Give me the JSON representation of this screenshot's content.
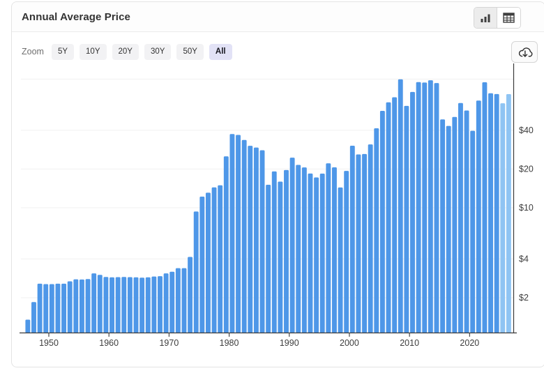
{
  "header": {
    "title": "Annual Average Price",
    "view_toggle": {
      "chart_view_icon": "bar-chart-icon",
      "table_view_icon": "table-icon",
      "active": "chart"
    }
  },
  "toolbar": {
    "zoom_label": "Zoom",
    "ranges": [
      "5Y",
      "10Y",
      "20Y",
      "30Y",
      "50Y",
      "All"
    ],
    "active_range": "All",
    "download_icon": "cloud-download-icon"
  },
  "colors": {
    "bar": "#4e97e8",
    "bar_forecast": "#8fc4f3",
    "axis_line": "#3a3a3a",
    "gridline": "#f1f1f1",
    "tick_label": "#3d3d3d",
    "active_range_bg": "#e2e2f6",
    "range_bg": "#f2f2f4",
    "card_border": "#e4e4e4"
  },
  "chart_data": {
    "type": "bar",
    "title": "Annual Average Price",
    "y_scale": "log",
    "ylim": [
      1.07,
      126
    ],
    "currency_prefix": "$",
    "y_tick_labels": [
      "$40",
      "$20",
      "$10",
      "$4",
      "$2"
    ],
    "y_tick_values": [
      40,
      20,
      10,
      4,
      2
    ],
    "y_gridline_values": [
      2,
      4,
      10,
      20,
      40,
      100
    ],
    "x_tick_years": [
      1950,
      1960,
      1970,
      1980,
      1990,
      2000,
      2010,
      2020
    ],
    "legend": "none",
    "grid": "horizontal",
    "axis_position": "right",
    "forecast_years": [
      2025,
      2026
    ],
    "years": [
      1946,
      1947,
      1948,
      1949,
      1950,
      1951,
      1952,
      1953,
      1954,
      1955,
      1956,
      1957,
      1958,
      1959,
      1960,
      1961,
      1962,
      1963,
      1964,
      1965,
      1966,
      1967,
      1968,
      1969,
      1970,
      1971,
      1972,
      1973,
      1974,
      1975,
      1976,
      1977,
      1978,
      1979,
      1980,
      1981,
      1982,
      1983,
      1984,
      1985,
      1986,
      1987,
      1988,
      1989,
      1990,
      1991,
      1992,
      1993,
      1994,
      1995,
      1996,
      1997,
      1998,
      1999,
      2000,
      2001,
      2002,
      2003,
      2004,
      2005,
      2006,
      2007,
      2008,
      2009,
      2010,
      2011,
      2012,
      2013,
      2014,
      2015,
      2016,
      2017,
      2018,
      2019,
      2020,
      2021,
      2022,
      2023,
      2024,
      2025,
      2026
    ],
    "values": [
      1.35,
      1.85,
      2.57,
      2.55,
      2.55,
      2.57,
      2.57,
      2.68,
      2.78,
      2.77,
      2.79,
      3.09,
      3.01,
      2.9,
      2.88,
      2.89,
      2.9,
      2.89,
      2.88,
      2.86,
      2.88,
      2.92,
      2.94,
      3.09,
      3.18,
      3.39,
      3.39,
      4.15,
      9.35,
      12.21,
      13.1,
      14.4,
      14.95,
      25.1,
      37.42,
      36.83,
      33.65,
      30.3,
      29.39,
      27.98,
      15.1,
      19.18,
      15.97,
      19.64,
      24.53,
      21.54,
      20.58,
      18.45,
      17.21,
      18.42,
      22.16,
      20.61,
      14.39,
      19.34,
      30.38,
      25.98,
      26.18,
      31.08,
      41.51,
      56.64,
      66.05,
      72.34,
      99.67,
      61.95,
      79.48,
      94.88,
      94.05,
      97.98,
      93.17,
      48.66,
      43.29,
      50.8,
      65.23,
      56.99,
      39.68,
      68.17,
      94.53,
      77.64,
      76.63,
      64.9,
      76.5
    ]
  }
}
